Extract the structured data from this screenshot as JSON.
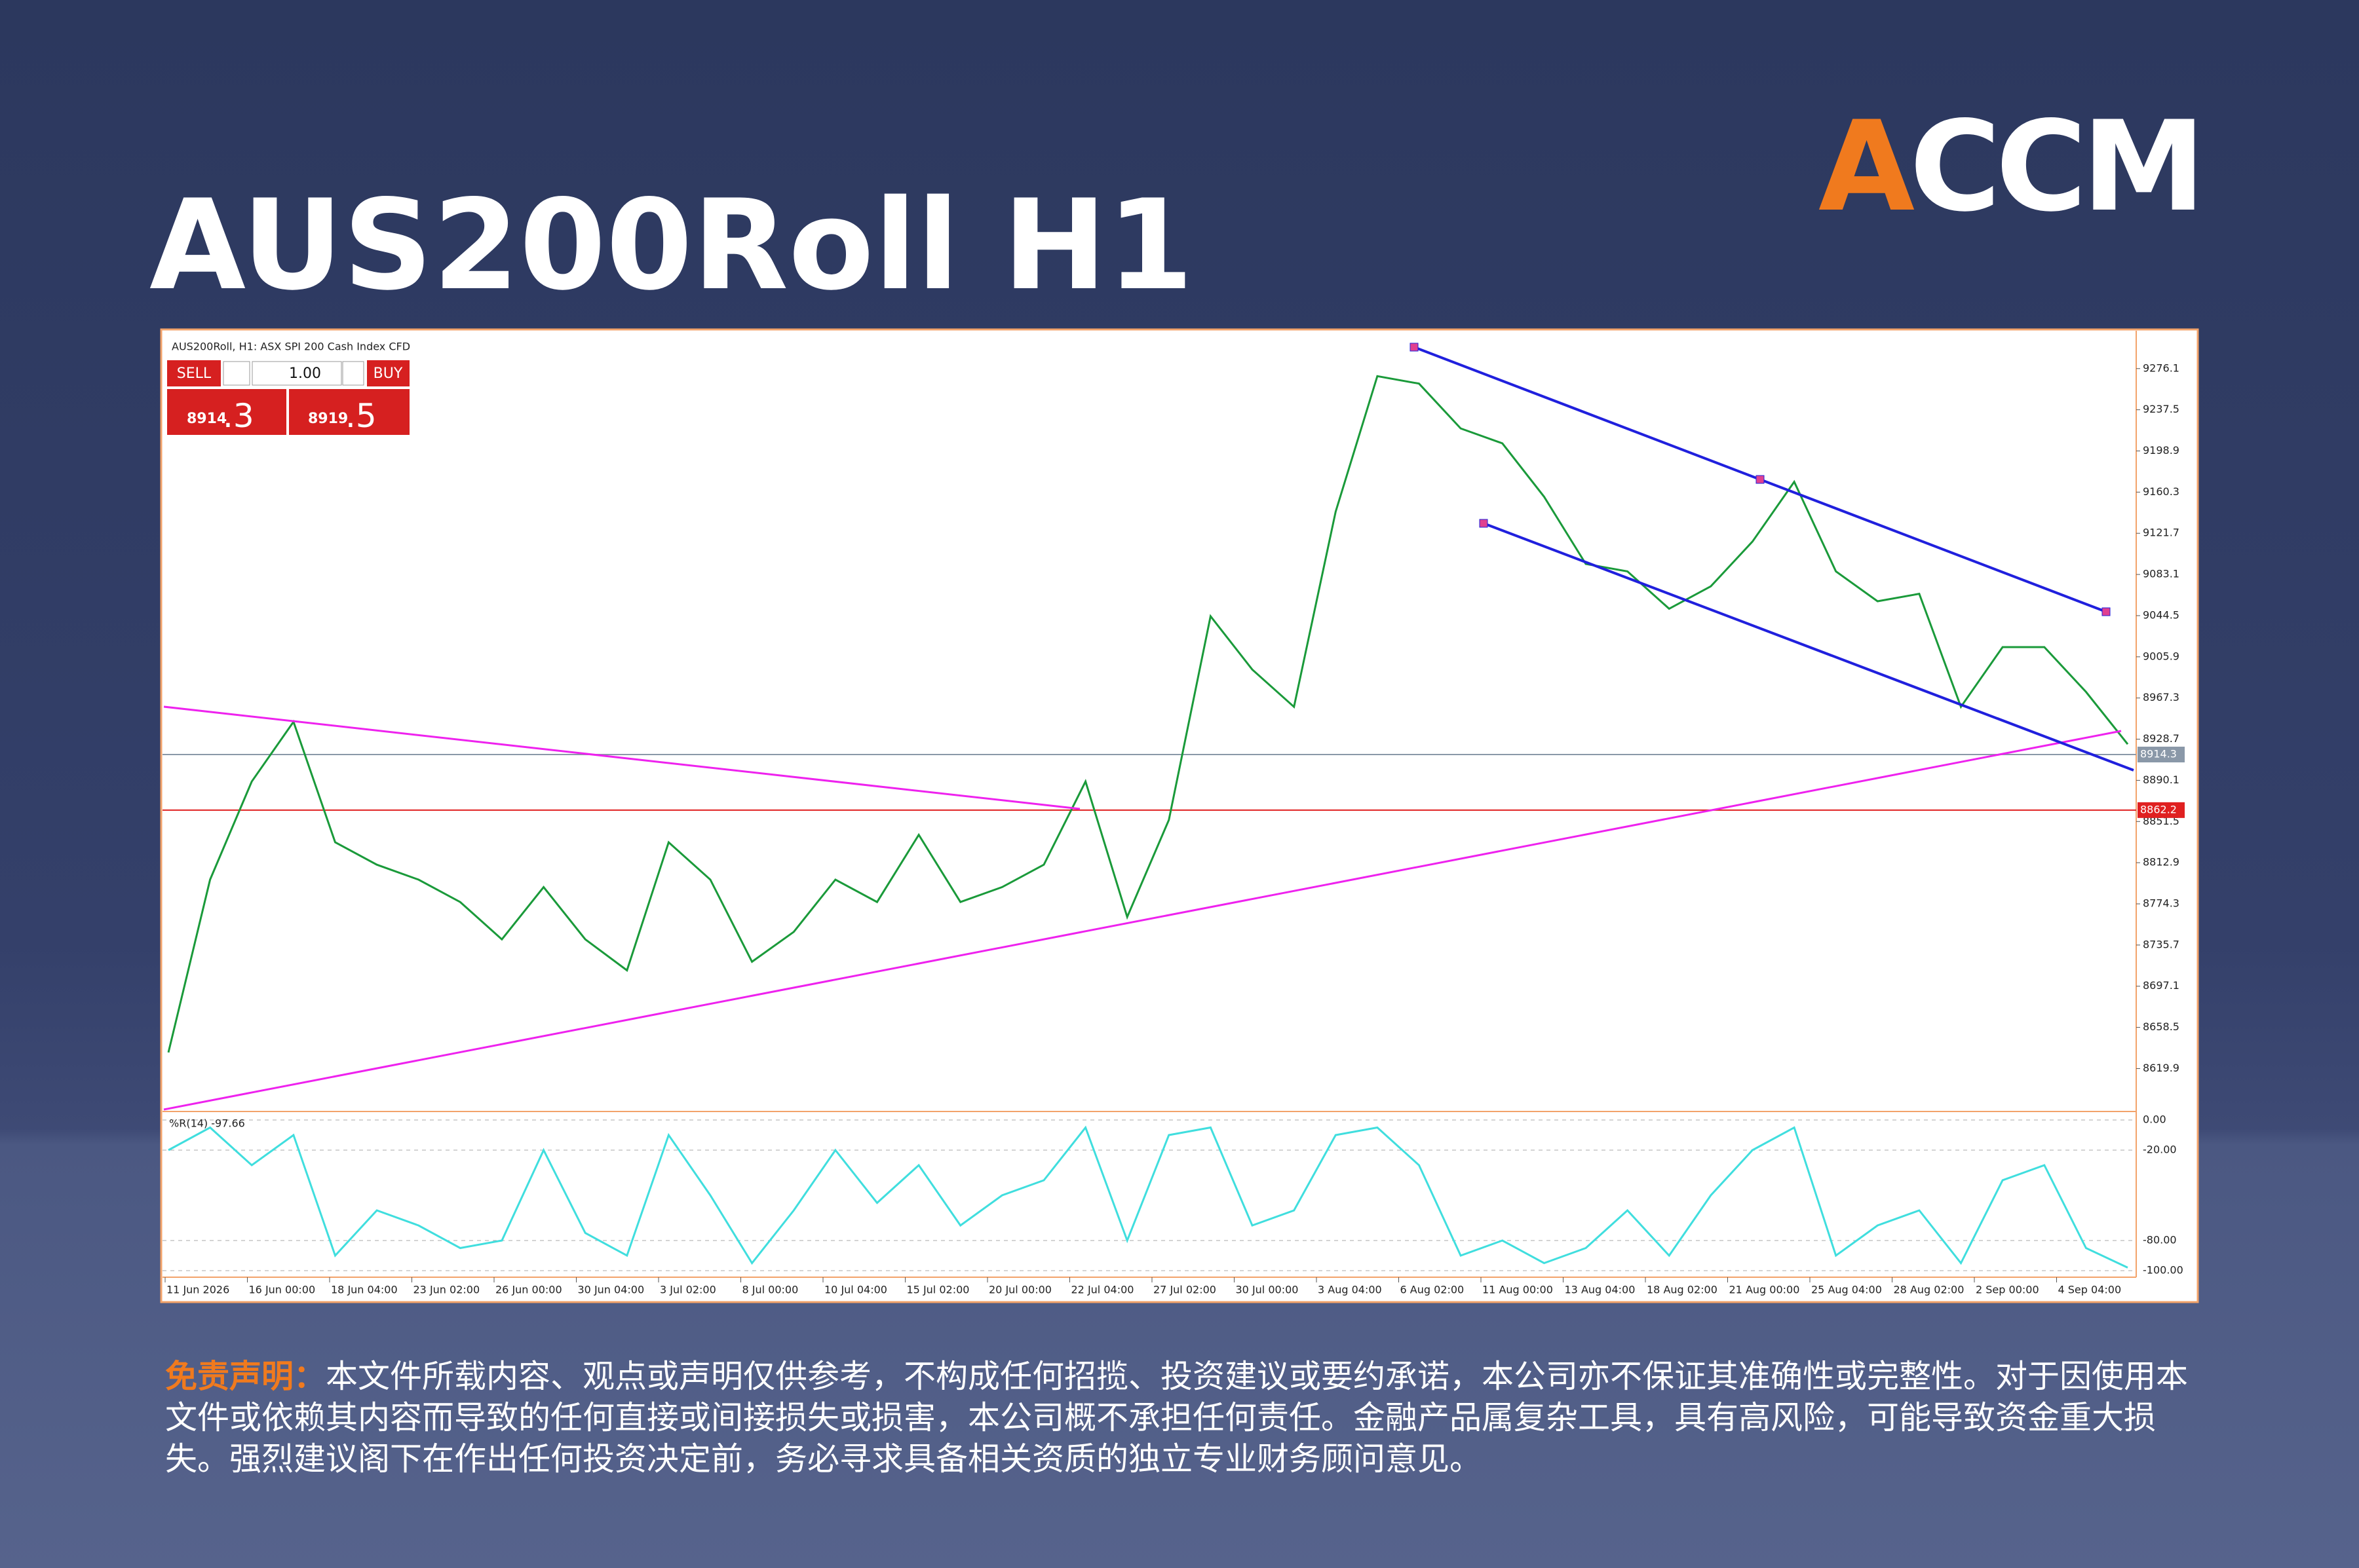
{
  "header": {
    "title": "AUS200Roll H1",
    "logo": [
      "A",
      "CC",
      "M"
    ]
  },
  "terminal": {
    "window_title": "AUS200Roll, H1:  ASX SPI 200 Cash Index CFD",
    "trade_panel": {
      "sell": "SELL",
      "buy": "BUY",
      "volume": "1.00",
      "bid": {
        "big": "8914",
        "small": ".3"
      },
      "ask": {
        "big": "8919",
        "small": ".5"
      }
    }
  },
  "chart_data": {
    "type": "line",
    "color": "#1a9a3a",
    "values": [
      8635,
      8797,
      8889,
      8945,
      8832,
      8811,
      8797,
      8776,
      8741,
      8790,
      8741,
      8712,
      8832,
      8797,
      8720,
      8748,
      8797,
      8776,
      8839,
      8776,
      8790,
      8811,
      8889,
      8762,
      8853,
      9044,
      8994,
      8959,
      9142,
      9269,
      9262,
      9220,
      9206,
      9156,
      9093,
      9086,
      9051,
      9072,
      9114,
      9170,
      9086,
      9058,
      9065,
      8959,
      9015,
      9015,
      8973,
      8924
    ],
    "ylim": [
      8581.5,
      9308.5
    ],
    "yticks": [
      9276.1,
      9237.5,
      9198.9,
      9160.3,
      9121.7,
      9083.1,
      9044.5,
      9005.9,
      8967.3,
      8928.7,
      8890.1,
      8851.5,
      8812.9,
      8774.3,
      8735.7,
      8697.1,
      8658.5,
      8619.9
    ],
    "price_lines": [
      {
        "value": 8914.3,
        "color": "#8a98a8"
      },
      {
        "value": 8862.2,
        "color": "#e02020"
      }
    ],
    "xtick_labels": [
      "11 Jun 2026",
      "16 Jun 00:00",
      "18 Jun 04:00",
      "23 Jun 02:00",
      "26 Jun 00:00",
      "30 Jun 04:00",
      "3 Jul 02:00",
      "8 Jul 00:00",
      "10 Jul 04:00",
      "15 Jul 02:00",
      "20 Jul 00:00",
      "22 Jul 04:00",
      "27 Jul 02:00",
      "30 Jul 00:00",
      "3 Aug 04:00",
      "6 Aug 02:00",
      "11 Aug 00:00",
      "13 Aug 04:00",
      "18 Aug 02:00",
      "21 Aug 00:00",
      "25 Aug 04:00",
      "28 Aug 02:00",
      "2 Sep 00:00",
      "4 Sep 04:00"
    ],
    "indicator": {
      "label": "%R(14) -97.66",
      "color": "#40dede",
      "values": [
        -20,
        -5,
        -30,
        -10,
        -90,
        -60,
        -70,
        -85,
        -80,
        -20,
        -75,
        -90,
        -10,
        -50,
        -95,
        -60,
        -20,
        -55,
        -30,
        -70,
        -50,
        -40,
        -5,
        -80,
        -10,
        -5,
        -70,
        -60,
        -10,
        -5,
        -30,
        -90,
        -80,
        -95,
        -85,
        -60,
        -90,
        -50,
        -20,
        -5,
        -90,
        -70,
        -60,
        -95,
        -40,
        -30,
        -85,
        -98
      ],
      "ylim": [
        -100,
        0
      ],
      "yticks": [
        {
          "value": 0,
          "label": "0.00"
        },
        {
          "value": -20,
          "label": "-20.00"
        },
        {
          "value": -80,
          "label": "-80.00"
        },
        {
          "value": -100,
          "label": "-100.00"
        }
      ]
    }
  },
  "disclaimer": {
    "label": "免责声明：",
    "text": "本文件所载内容、观点或声明仅供参考，不构成任何招揽、投资建议或要约承诺，本公司亦不保证其准确性或完整性。对于因使用本文件或依赖其内容而导致的任何直接或间接损失或损害，本公司概不承担任何责任。金融产品属复杂工具，具有高风险，可能导致资金重大损失。强烈建议阁下在作出任何投资决定前，务必寻求具备相关资质的独立专业财务顾问意见。"
  }
}
